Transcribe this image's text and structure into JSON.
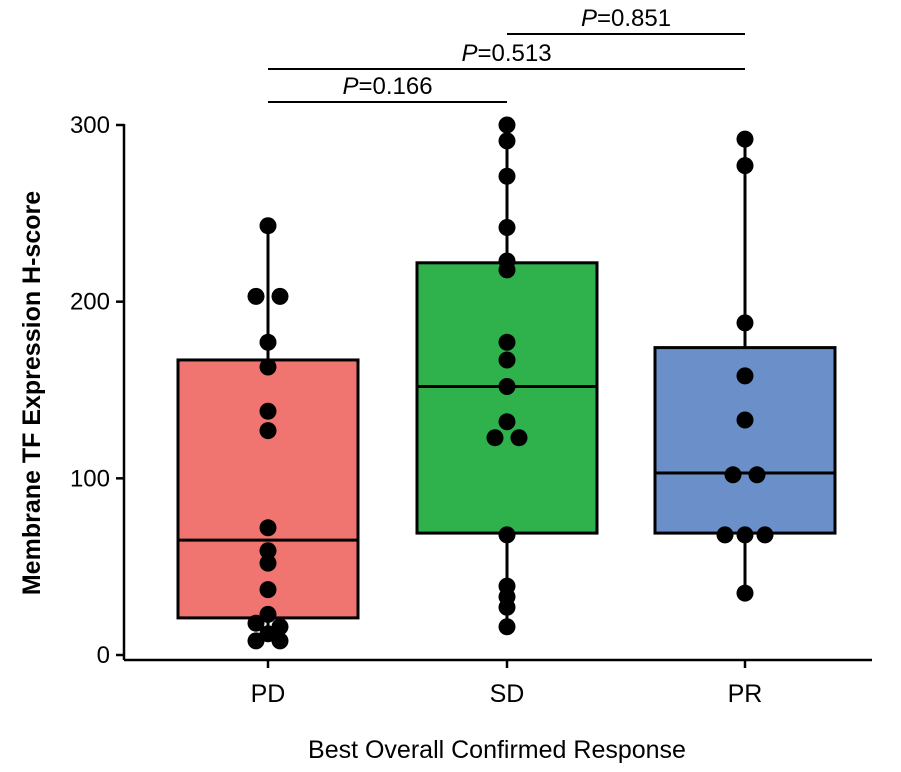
{
  "chart_data": {
    "type": "box",
    "xlabel": "Best Overall Confirmed Response",
    "ylabel": "Membrane TF Expression H-score",
    "ylim": [
      0,
      300
    ],
    "yticks": [
      0,
      100,
      200,
      300
    ],
    "categories": [
      "PD",
      "SD",
      "PR"
    ],
    "colors": {
      "PD": "#f07470",
      "SD": "#2fb14b",
      "PR": "#6b8fc9"
    },
    "boxes": [
      {
        "category": "PD",
        "q1": 21,
        "median": 65,
        "q3": 167,
        "whisker_low": 8,
        "whisker_high": 243
      },
      {
        "category": "SD",
        "q1": 69,
        "median": 152,
        "q3": 222,
        "whisker_low": 16,
        "whisker_high": 300
      },
      {
        "category": "PR",
        "q1": 69,
        "median": 103,
        "q3": 174,
        "whisker_low": 35,
        "whisker_high": 292
      }
    ],
    "points": [
      {
        "category": "PD",
        "y": 243,
        "dx": 0
      },
      {
        "category": "PD",
        "y": 203,
        "dx": -0.06
      },
      {
        "category": "PD",
        "y": 203,
        "dx": 0.06
      },
      {
        "category": "PD",
        "y": 177,
        "dx": 0
      },
      {
        "category": "PD",
        "y": 163,
        "dx": 0
      },
      {
        "category": "PD",
        "y": 138,
        "dx": 0
      },
      {
        "category": "PD",
        "y": 127,
        "dx": 0
      },
      {
        "category": "PD",
        "y": 72,
        "dx": 0
      },
      {
        "category": "PD",
        "y": 59,
        "dx": 0
      },
      {
        "category": "PD",
        "y": 52,
        "dx": 0
      },
      {
        "category": "PD",
        "y": 37,
        "dx": 0
      },
      {
        "category": "PD",
        "y": 23,
        "dx": 0
      },
      {
        "category": "PD",
        "y": 18,
        "dx": -0.06
      },
      {
        "category": "PD",
        "y": 16,
        "dx": 0.06
      },
      {
        "category": "PD",
        "y": 12,
        "dx": 0
      },
      {
        "category": "PD",
        "y": 8,
        "dx": -0.06
      },
      {
        "category": "PD",
        "y": 8,
        "dx": 0.06
      },
      {
        "category": "SD",
        "y": 300,
        "dx": 0
      },
      {
        "category": "SD",
        "y": 291,
        "dx": 0
      },
      {
        "category": "SD",
        "y": 271,
        "dx": 0
      },
      {
        "category": "SD",
        "y": 242,
        "dx": 0
      },
      {
        "category": "SD",
        "y": 223,
        "dx": 0
      },
      {
        "category": "SD",
        "y": 218,
        "dx": 0
      },
      {
        "category": "SD",
        "y": 177,
        "dx": 0
      },
      {
        "category": "SD",
        "y": 167,
        "dx": 0
      },
      {
        "category": "SD",
        "y": 152,
        "dx": 0
      },
      {
        "category": "SD",
        "y": 132,
        "dx": 0
      },
      {
        "category": "SD",
        "y": 123,
        "dx": -0.06
      },
      {
        "category": "SD",
        "y": 123,
        "dx": 0.06
      },
      {
        "category": "SD",
        "y": 68,
        "dx": 0
      },
      {
        "category": "SD",
        "y": 39,
        "dx": 0
      },
      {
        "category": "SD",
        "y": 33,
        "dx": 0
      },
      {
        "category": "SD",
        "y": 27,
        "dx": 0
      },
      {
        "category": "SD",
        "y": 16,
        "dx": 0
      },
      {
        "category": "PR",
        "y": 292,
        "dx": 0
      },
      {
        "category": "PR",
        "y": 277,
        "dx": 0
      },
      {
        "category": "PR",
        "y": 188,
        "dx": 0
      },
      {
        "category": "PR",
        "y": 158,
        "dx": 0
      },
      {
        "category": "PR",
        "y": 133,
        "dx": 0
      },
      {
        "category": "PR",
        "y": 102,
        "dx": -0.06
      },
      {
        "category": "PR",
        "y": 102,
        "dx": 0.06
      },
      {
        "category": "PR",
        "y": 68,
        "dx": -0.1
      },
      {
        "category": "PR",
        "y": 68,
        "dx": 0
      },
      {
        "category": "PR",
        "y": 68,
        "dx": 0.1
      },
      {
        "category": "PR",
        "y": 35,
        "dx": 0
      }
    ],
    "comparisons": [
      {
        "from": "PD",
        "to": "SD",
        "p_label": "P",
        "p_value": "=0.166"
      },
      {
        "from": "PD",
        "to": "PR",
        "p_label": "P",
        "p_value": "=0.513"
      },
      {
        "from": "SD",
        "to": "PR",
        "p_label": "P",
        "p_value": "=0.851"
      }
    ]
  }
}
